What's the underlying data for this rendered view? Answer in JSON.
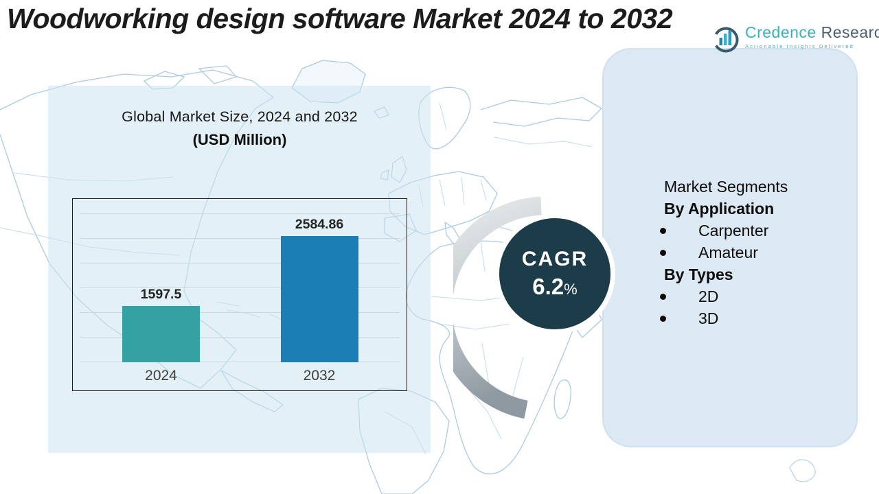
{
  "header": {
    "title": "Woodworking design software Market 2024 to 2032"
  },
  "logo": {
    "brand_primary": "Credence",
    "brand_secondary": "Research",
    "tagline": "Actionable Insights Delivered"
  },
  "chart_data": {
    "type": "bar",
    "title": "Global Market Size, 2024 and 2032",
    "subtitle": "(USD Million)",
    "categories": [
      "2024",
      "2032"
    ],
    "values": [
      1597.5,
      2584.86
    ],
    "value_labels": [
      "1597.5",
      "2584.86"
    ],
    "bar_colors": [
      "#35a1a2",
      "#1b7eb4"
    ],
    "ylim": [
      800,
      2900
    ],
    "gridline_count": 7,
    "grid": true,
    "legend": "none",
    "xlabel": "",
    "ylabel": ""
  },
  "cagr": {
    "label": "CAGR",
    "value": "6.2",
    "unit": "%"
  },
  "segments": {
    "heading": "Market Segments",
    "groups": [
      {
        "title": "By Application",
        "items": [
          "Carpenter",
          "Amateur"
        ]
      },
      {
        "title": "By Types",
        "items": [
          "2D",
          "3D"
        ]
      }
    ]
  }
}
